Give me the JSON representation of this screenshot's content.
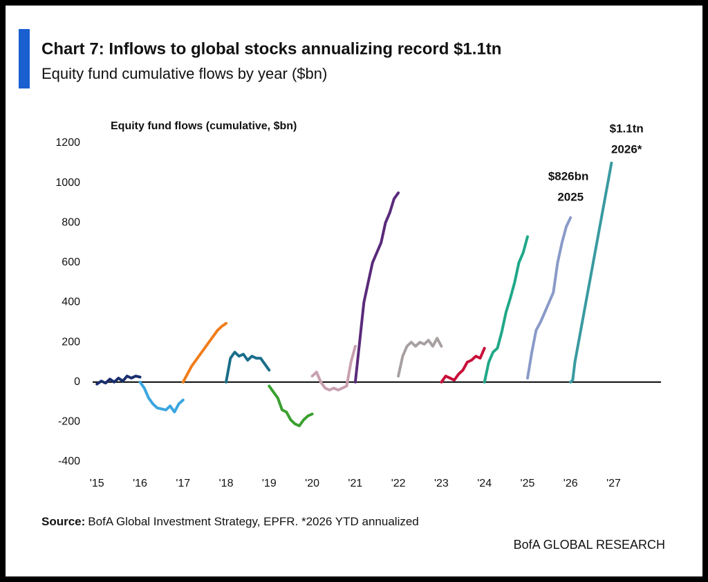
{
  "chart_data": {
    "type": "line",
    "title": "Chart 7: Inflows to global stocks annualizing record $1.1tn",
    "subtitle": "Equity fund cumulative flows by year ($bn)",
    "ylabel": "Equity fund flows (cumulative, $bn)",
    "source_label": "Source:",
    "source": "BofA Global Investment Strategy, EPFR. *2026 YTD annualized",
    "brand": "BofA GLOBAL RESEARCH",
    "annotations": [
      {
        "text": "$826bn",
        "x": 2025.95,
        "y": 1030
      },
      {
        "text": "2025",
        "x": 2026.0,
        "y": 925
      },
      {
        "text": "$1.1tn",
        "x": 2027.3,
        "y": 1270
      },
      {
        "text": "2026*",
        "x": 2027.3,
        "y": 1165
      }
    ],
    "xlim": [
      2014.9,
      2028.1
    ],
    "ylim": [
      -400,
      1200
    ],
    "yticks": [
      -400,
      -200,
      0,
      200,
      400,
      600,
      800,
      1000,
      1200
    ],
    "xticks": [
      {
        "value": 2015,
        "label": "'15"
      },
      {
        "value": 2016,
        "label": "'16"
      },
      {
        "value": 2017,
        "label": "'17"
      },
      {
        "value": 2018,
        "label": "'18"
      },
      {
        "value": 2019,
        "label": "'19"
      },
      {
        "value": 2020,
        "label": "'20"
      },
      {
        "value": 2021,
        "label": "'21"
      },
      {
        "value": 2022,
        "label": "'22"
      },
      {
        "value": 2023,
        "label": "'23"
      },
      {
        "value": 2024,
        "label": "'24"
      },
      {
        "value": 2025,
        "label": "'25"
      },
      {
        "value": 2026,
        "label": "'26"
      },
      {
        "value": 2027,
        "label": "'27"
      }
    ],
    "series": [
      {
        "color": "#1b2f6e",
        "x": [
          2015.0,
          2015.1,
          2015.2,
          2015.3,
          2015.4,
          2015.5,
          2015.6,
          2015.7,
          2015.8,
          2015.9,
          2016.0
        ],
        "values": [
          -10,
          5,
          -5,
          15,
          0,
          20,
          5,
          30,
          20,
          30,
          25
        ]
      },
      {
        "color": "#3aa6e0",
        "x": [
          2016.0,
          2016.1,
          2016.2,
          2016.3,
          2016.4,
          2016.5,
          2016.6,
          2016.7,
          2016.8,
          2016.9,
          2017.0
        ],
        "values": [
          0,
          -30,
          -80,
          -110,
          -130,
          -135,
          -140,
          -120,
          -150,
          -110,
          -90
        ]
      },
      {
        "color": "#f07d1a",
        "x": [
          2017.0,
          2017.1,
          2017.2,
          2017.3,
          2017.4,
          2017.5,
          2017.6,
          2017.7,
          2017.8,
          2017.9,
          2018.0
        ],
        "values": [
          0,
          40,
          80,
          110,
          140,
          170,
          200,
          230,
          260,
          280,
          295
        ]
      },
      {
        "color": "#1a6e8a",
        "x": [
          2018.0,
          2018.1,
          2018.2,
          2018.3,
          2018.4,
          2018.5,
          2018.6,
          2018.7,
          2018.8,
          2018.9,
          2019.0
        ],
        "values": [
          0,
          120,
          150,
          130,
          140,
          110,
          130,
          120,
          120,
          90,
          60
        ]
      },
      {
        "color": "#3aa030",
        "x": [
          2019.0,
          2019.1,
          2019.2,
          2019.3,
          2019.4,
          2019.5,
          2019.6,
          2019.7,
          2019.8,
          2019.9,
          2020.0
        ],
        "values": [
          -20,
          -50,
          -80,
          -140,
          -150,
          -190,
          -210,
          -220,
          -190,
          -170,
          -160
        ]
      },
      {
        "color": "#c8a0b0",
        "x": [
          2020.0,
          2020.1,
          2020.2,
          2020.3,
          2020.4,
          2020.5,
          2020.6,
          2020.7,
          2020.8,
          2020.9,
          2021.0
        ],
        "values": [
          30,
          50,
          0,
          -30,
          -40,
          -30,
          -40,
          -30,
          -20,
          100,
          180
        ]
      },
      {
        "color": "#5a2a7a",
        "x": [
          2021.0,
          2021.1,
          2021.2,
          2021.3,
          2021.4,
          2021.5,
          2021.6,
          2021.7,
          2021.8,
          2021.9,
          2022.0
        ],
        "values": [
          0,
          200,
          400,
          500,
          600,
          650,
          700,
          800,
          850,
          920,
          950
        ]
      },
      {
        "color": "#a8a0a0",
        "x": [
          2022.0,
          2022.1,
          2022.2,
          2022.3,
          2022.4,
          2022.5,
          2022.6,
          2022.7,
          2022.8,
          2022.9,
          2023.0
        ],
        "values": [
          30,
          130,
          180,
          200,
          180,
          200,
          190,
          210,
          180,
          220,
          180
        ]
      },
      {
        "color": "#c8103a",
        "x": [
          2023.0,
          2023.1,
          2023.2,
          2023.3,
          2023.4,
          2023.5,
          2023.6,
          2023.7,
          2023.8,
          2023.9,
          2024.0
        ],
        "values": [
          0,
          30,
          20,
          10,
          40,
          60,
          100,
          110,
          130,
          120,
          170
        ]
      },
      {
        "color": "#20a888",
        "x": [
          2024.0,
          2024.1,
          2024.2,
          2024.3,
          2024.4,
          2024.5,
          2024.6,
          2024.7,
          2024.8,
          2024.9,
          2025.0
        ],
        "values": [
          0,
          100,
          150,
          170,
          250,
          350,
          420,
          500,
          600,
          650,
          730
        ]
      },
      {
        "color": "#8a9ac8",
        "x": [
          2025.0,
          2025.1,
          2025.2,
          2025.3,
          2025.4,
          2025.5,
          2025.6,
          2025.7,
          2025.8,
          2025.9,
          2026.0
        ],
        "values": [
          20,
          150,
          260,
          300,
          350,
          400,
          450,
          600,
          700,
          780,
          826
        ]
      },
      {
        "color": "#3a9aa0",
        "x": [
          2026.0,
          2026.05,
          2026.1,
          2026.95
        ],
        "values": [
          0,
          10,
          100,
          1100
        ]
      }
    ]
  }
}
